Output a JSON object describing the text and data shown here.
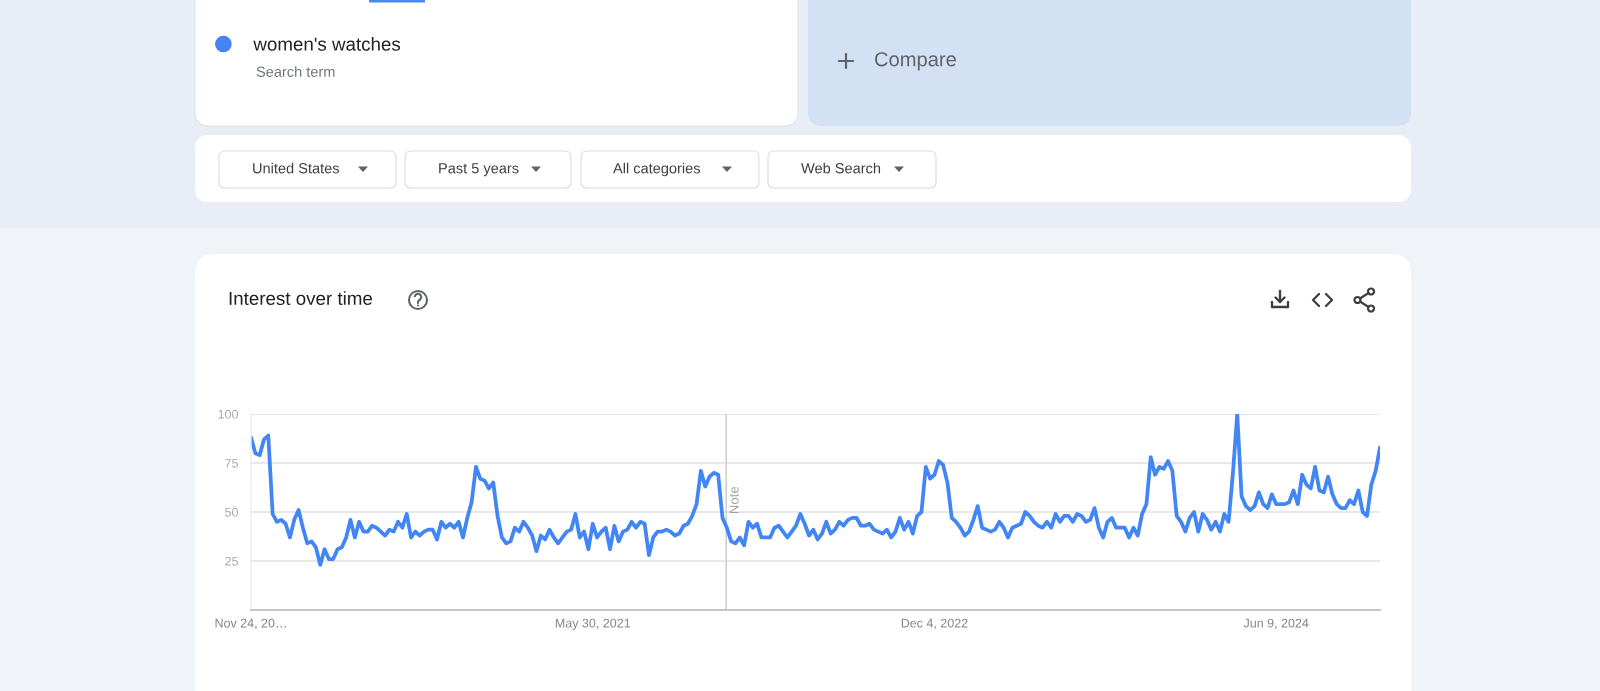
{
  "chart_data": {
    "type": "line",
    "title": "Interest over time",
    "x": [
      "2019-11-24",
      "2019-12-01",
      "2019-12-08",
      "2019-12-15",
      "2019-12-22",
      "2019-12-29",
      "2020-01-05",
      "2020-01-12",
      "2020-01-19",
      "2020-01-26",
      "2020-02-02",
      "2020-02-09",
      "2020-02-16",
      "2020-02-23",
      "2020-03-01",
      "2020-03-08",
      "2020-03-15",
      "2020-03-22",
      "2020-03-29",
      "2020-04-05",
      "2020-04-12",
      "2020-04-19",
      "2020-04-26",
      "2020-05-03",
      "2020-05-10",
      "2020-05-17",
      "2020-05-24",
      "2020-05-31",
      "2020-06-07",
      "2020-06-14",
      "2020-06-21",
      "2020-06-28",
      "2020-07-05",
      "2020-07-12",
      "2020-07-19",
      "2020-07-26",
      "2020-08-02",
      "2020-08-09",
      "2020-08-16",
      "2020-08-23",
      "2020-08-30",
      "2020-09-06",
      "2020-09-13",
      "2020-09-20",
      "2020-09-27",
      "2020-10-04",
      "2020-10-11",
      "2020-10-18",
      "2020-10-25",
      "2020-11-01",
      "2020-11-08",
      "2020-11-15",
      "2020-11-22",
      "2020-11-29",
      "2020-12-06",
      "2020-12-13",
      "2020-12-20",
      "2020-12-27",
      "2021-01-03",
      "2021-01-10",
      "2021-01-17",
      "2021-01-24",
      "2021-01-31",
      "2021-02-07",
      "2021-02-14",
      "2021-02-21",
      "2021-02-28",
      "2021-03-07",
      "2021-03-14",
      "2021-03-21",
      "2021-03-28",
      "2021-04-04",
      "2021-04-11",
      "2021-04-18",
      "2021-04-25",
      "2021-05-02",
      "2021-05-09",
      "2021-05-16",
      "2021-05-23",
      "2021-05-30",
      "2021-06-06",
      "2021-06-13",
      "2021-06-20",
      "2021-06-27",
      "2021-07-04",
      "2021-07-11",
      "2021-07-18",
      "2021-07-25",
      "2021-08-01",
      "2021-08-08",
      "2021-08-15",
      "2021-08-22",
      "2021-08-29",
      "2021-09-05",
      "2021-09-12",
      "2021-09-19",
      "2021-09-26",
      "2021-10-03",
      "2021-10-10",
      "2021-10-17",
      "2021-10-24",
      "2021-10-31",
      "2021-11-07",
      "2021-11-14",
      "2021-11-21",
      "2021-11-28",
      "2021-12-05",
      "2021-12-12",
      "2021-12-19",
      "2021-12-26",
      "2022-01-02",
      "2022-01-09",
      "2022-01-16",
      "2022-01-23",
      "2022-01-30",
      "2022-02-06",
      "2022-02-13",
      "2022-02-20",
      "2022-02-27",
      "2022-03-06",
      "2022-03-13",
      "2022-03-20",
      "2022-03-27",
      "2022-04-03",
      "2022-04-10",
      "2022-04-17",
      "2022-04-24",
      "2022-05-01",
      "2022-05-08",
      "2022-05-15",
      "2022-05-22",
      "2022-05-29",
      "2022-06-05",
      "2022-06-12",
      "2022-06-19",
      "2022-06-26",
      "2022-07-03",
      "2022-07-10",
      "2022-07-17",
      "2022-07-24",
      "2022-07-31",
      "2022-08-07",
      "2022-08-14",
      "2022-08-21",
      "2022-08-28",
      "2022-09-04",
      "2022-09-11",
      "2022-09-18",
      "2022-09-25",
      "2022-10-02",
      "2022-10-09",
      "2022-10-16",
      "2022-10-23",
      "2022-10-30",
      "2022-11-06",
      "2022-11-13",
      "2022-11-20",
      "2022-11-27",
      "2022-12-04",
      "2022-12-11",
      "2022-12-18",
      "2022-12-25",
      "2023-01-01",
      "2023-01-08",
      "2023-01-15",
      "2023-01-22",
      "2023-01-29",
      "2023-02-05",
      "2023-02-12",
      "2023-02-19",
      "2023-02-26",
      "2023-03-05",
      "2023-03-12",
      "2023-03-19",
      "2023-03-26",
      "2023-04-02",
      "2023-04-09",
      "2023-04-16",
      "2023-04-23",
      "2023-04-30",
      "2023-05-07",
      "2023-05-14",
      "2023-05-21",
      "2023-05-28",
      "2023-06-04",
      "2023-06-11",
      "2023-06-18",
      "2023-06-25",
      "2023-07-02",
      "2023-07-09",
      "2023-07-16",
      "2023-07-23",
      "2023-07-30",
      "2023-08-06",
      "2023-08-13",
      "2023-08-20",
      "2023-08-27",
      "2023-09-03",
      "2023-09-10",
      "2023-09-17",
      "2023-09-24",
      "2023-10-01",
      "2023-10-08",
      "2023-10-15",
      "2023-10-22",
      "2023-10-29",
      "2023-11-05",
      "2023-11-12",
      "2023-11-19",
      "2023-11-26",
      "2023-12-03",
      "2023-12-10",
      "2023-12-17",
      "2023-12-24",
      "2023-12-31",
      "2024-01-07",
      "2024-01-14",
      "2024-01-21",
      "2024-01-28",
      "2024-02-04",
      "2024-02-11",
      "2024-02-18",
      "2024-02-25",
      "2024-03-03",
      "2024-03-10",
      "2024-03-17",
      "2024-03-24",
      "2024-03-31",
      "2024-04-07",
      "2024-04-14",
      "2024-04-21",
      "2024-04-28",
      "2024-05-05",
      "2024-05-12",
      "2024-05-19",
      "2024-05-26",
      "2024-06-02",
      "2024-06-09",
      "2024-06-16",
      "2024-06-23",
      "2024-06-30",
      "2024-07-07",
      "2024-07-14",
      "2024-07-21",
      "2024-07-28",
      "2024-08-04",
      "2024-08-11",
      "2024-08-18",
      "2024-08-25",
      "2024-09-01",
      "2024-09-08",
      "2024-09-15",
      "2024-09-22",
      "2024-09-29",
      "2024-10-06",
      "2024-10-13",
      "2024-10-20",
      "2024-10-27",
      "2024-11-03",
      "2024-11-10",
      "2024-11-17",
      "2024-11-24"
    ],
    "series": [
      {
        "name": "women's watches",
        "color": "#4285f4",
        "values": [
          88,
          80,
          79,
          87,
          89,
          49,
          45,
          46,
          44,
          37,
          46,
          51,
          42,
          34,
          35,
          32,
          23,
          31,
          26,
          26,
          31,
          32,
          37,
          46,
          37,
          45,
          40,
          40,
          43,
          42,
          40,
          38,
          41,
          40,
          45,
          42,
          49,
          37,
          40,
          38,
          40,
          41,
          41,
          36,
          45,
          42,
          44,
          42,
          45,
          37,
          47,
          55,
          73,
          67,
          66,
          62,
          65,
          48,
          37,
          34,
          35,
          42,
          40,
          45,
          42,
          38,
          30,
          38,
          36,
          41,
          37,
          34,
          37,
          40,
          41,
          49,
          37,
          40,
          31,
          44,
          37,
          40,
          42,
          31,
          43,
          35,
          40,
          41,
          45,
          42,
          45,
          44,
          28,
          37,
          40,
          40,
          41,
          40,
          38,
          39,
          43,
          44,
          48,
          54,
          71,
          63,
          68,
          70,
          69,
          47,
          42,
          35,
          34,
          37,
          33,
          45,
          42,
          44,
          37,
          37,
          37,
          42,
          43,
          40,
          37,
          40,
          43,
          49,
          44,
          38,
          41,
          36,
          39,
          45,
          39,
          41,
          45,
          43,
          46,
          47,
          47,
          43,
          43,
          44,
          41,
          40,
          39,
          41,
          37,
          40,
          47,
          41,
          45,
          39,
          48,
          50,
          73,
          67,
          69,
          76,
          74,
          65,
          47,
          45,
          42,
          38,
          40,
          46,
          53,
          42,
          41,
          40,
          41,
          45,
          42,
          37,
          42,
          43,
          44,
          50,
          48,
          45,
          43,
          42,
          45,
          42,
          49,
          45,
          48,
          48,
          45,
          49,
          48,
          45,
          46,
          52,
          42,
          37,
          45,
          47,
          42,
          42,
          42,
          37,
          42,
          38,
          49,
          54,
          78,
          69,
          73,
          72,
          76,
          71,
          48,
          45,
          40,
          47,
          50,
          40,
          49,
          46,
          41,
          45,
          40,
          49,
          45,
          70,
          100,
          58,
          53,
          51,
          53,
          60,
          54,
          52,
          59,
          54,
          54,
          54,
          55,
          61,
          54,
          69,
          64,
          62,
          73,
          61,
          60,
          68,
          59,
          54,
          52,
          52,
          56,
          54,
          61,
          50,
          48,
          64,
          71,
          83
        ]
      }
    ],
    "xlim": [
      "2019-11-24",
      "2024-11-24"
    ],
    "xticks": [
      {
        "value": "2019-11-24",
        "label": "Nov 24, 20…"
      },
      {
        "value": "2021-05-30",
        "label": "May 30, 2021"
      },
      {
        "value": "2022-12-04",
        "label": "Dec 4, 2022"
      },
      {
        "value": "2024-06-09",
        "label": "Jun 9, 2024"
      }
    ],
    "ylim": [
      0,
      100
    ],
    "yticks": [
      25,
      50,
      75,
      100
    ],
    "grid": "y",
    "legend": "top left",
    "line_style": "solid",
    "ref_lines": [
      {
        "axis": "x",
        "value": "2022-01-01",
        "label": "Note",
        "color": "#d0d0d0"
      }
    ],
    "annotations": [
      "Search term",
      "Compare",
      "United States",
      "Past 5 years",
      "All categories",
      "Web Search"
    ]
  }
}
